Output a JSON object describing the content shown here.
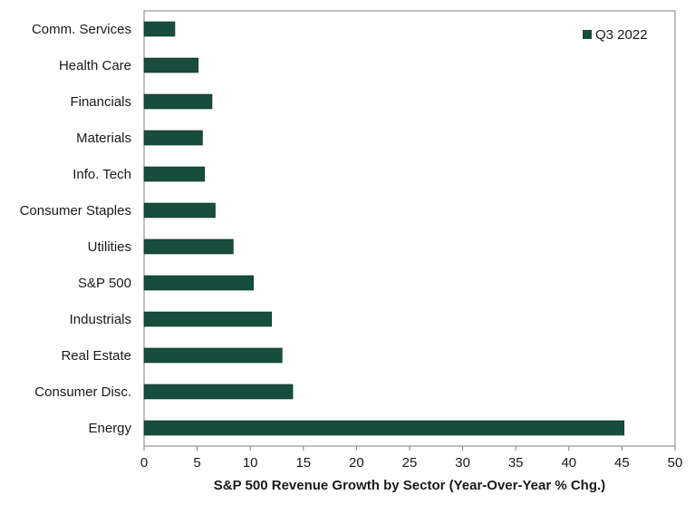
{
  "chart_data": {
    "type": "bar",
    "orientation": "horizontal",
    "categories": [
      "Comm. Services",
      "Health Care",
      "Financials",
      "Materials",
      "Info. Tech",
      "Consumer Staples",
      "Utilities",
      "S&P 500",
      "Industrials",
      "Real Estate",
      "Consumer Disc.",
      "Energy"
    ],
    "series": [
      {
        "name": "Q3 2022",
        "values": [
          2.9,
          5.1,
          6.4,
          5.5,
          5.7,
          6.7,
          8.4,
          10.3,
          12.0,
          13.0,
          14.0,
          45.2
        ],
        "color": "#174d3c"
      }
    ],
    "xlabel": "S&P 500 Revenue Growth by Sector (Year-Over-Year % Chg.)",
    "ylabel": "",
    "xlim": [
      0,
      50
    ],
    "xticks": [
      0,
      5,
      10,
      15,
      20,
      25,
      30,
      35,
      40,
      45,
      50
    ],
    "grid": false,
    "legend_position": "top-right"
  }
}
